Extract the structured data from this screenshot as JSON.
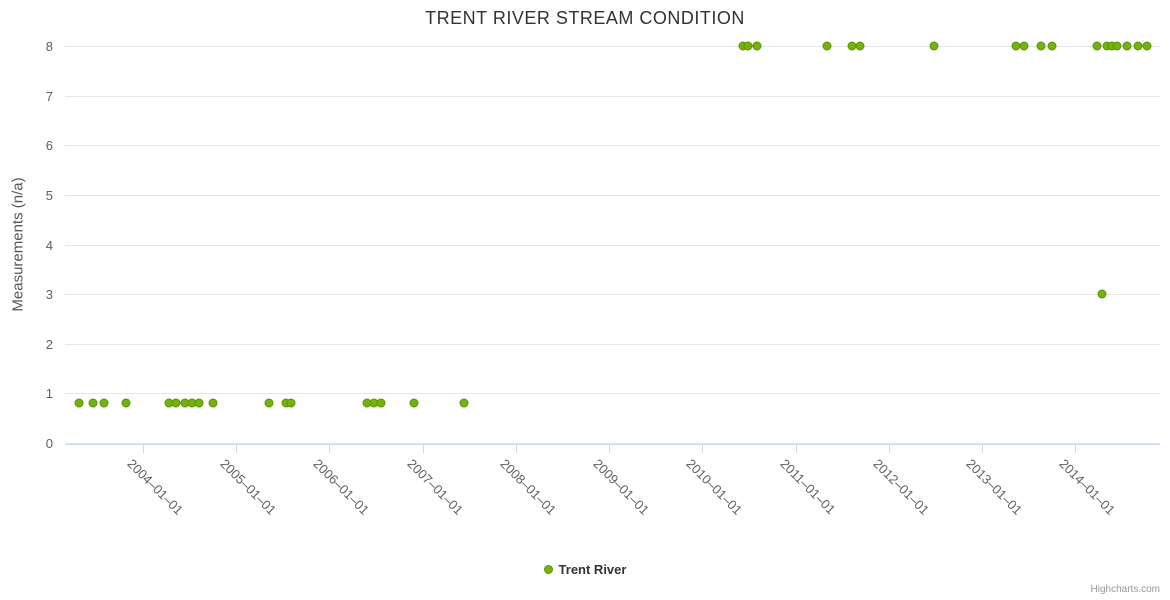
{
  "chart": {
    "title": "TRENT RIVER STREAM CONDITION",
    "y_axis_title": "Measurements (n/a)",
    "credit": "Highcharts.com",
    "colors": {
      "series": "#76b20e",
      "series_edge": "#5a9305",
      "grid": "#e6e6e6",
      "axis": "#ccd6eb",
      "tick_label": "#606060",
      "title": "#333333"
    }
  },
  "chart_data": {
    "type": "scatter",
    "title": "TRENT RIVER STREAM CONDITION",
    "xlabel": "",
    "ylabel": "Measurements (n/a)",
    "ylim": [
      0,
      8
    ],
    "y_ticks": [
      0,
      1,
      2,
      3,
      4,
      5,
      6,
      7,
      8
    ],
    "x_ticks": [
      "2004-01-01",
      "2005-01-01",
      "2006-01-01",
      "2007-01-01",
      "2008-01-01",
      "2009-01-01",
      "2010-01-01",
      "2011-01-01",
      "2012-01-01",
      "2013-01-01",
      "2014-01-01"
    ],
    "grid": "horizontal-only",
    "legend_position": "bottom-center",
    "series": [
      {
        "name": "Trent River",
        "color": "#76b20e",
        "points": [
          {
            "date": "2003-04-25",
            "value": 0.8
          },
          {
            "date": "2003-06-20",
            "value": 0.8
          },
          {
            "date": "2003-08-01",
            "value": 0.8
          },
          {
            "date": "2003-10-25",
            "value": 0.8
          },
          {
            "date": "2004-04-12",
            "value": 0.8
          },
          {
            "date": "2004-05-08",
            "value": 0.8
          },
          {
            "date": "2004-06-12",
            "value": 0.8
          },
          {
            "date": "2004-07-10",
            "value": 0.8
          },
          {
            "date": "2004-08-08",
            "value": 0.8
          },
          {
            "date": "2004-10-03",
            "value": 0.8
          },
          {
            "date": "2005-05-08",
            "value": 0.8
          },
          {
            "date": "2005-07-12",
            "value": 0.8
          },
          {
            "date": "2005-08-03",
            "value": 0.8
          },
          {
            "date": "2006-05-25",
            "value": 0.8
          },
          {
            "date": "2006-06-22",
            "value": 0.8
          },
          {
            "date": "2006-07-20",
            "value": 0.8
          },
          {
            "date": "2006-11-28",
            "value": 0.8
          },
          {
            "date": "2007-06-10",
            "value": 0.8
          },
          {
            "date": "2010-06-10",
            "value": 8
          },
          {
            "date": "2010-06-28",
            "value": 8
          },
          {
            "date": "2010-08-03",
            "value": 8
          },
          {
            "date": "2011-05-03",
            "value": 8
          },
          {
            "date": "2011-08-08",
            "value": 8
          },
          {
            "date": "2011-09-10",
            "value": 8
          },
          {
            "date": "2012-06-28",
            "value": 8
          },
          {
            "date": "2013-05-12",
            "value": 8
          },
          {
            "date": "2013-06-15",
            "value": 8
          },
          {
            "date": "2013-08-18",
            "value": 8
          },
          {
            "date": "2013-10-03",
            "value": 8
          },
          {
            "date": "2014-03-25",
            "value": 8
          },
          {
            "date": "2014-04-15",
            "value": 3
          },
          {
            "date": "2014-05-05",
            "value": 8
          },
          {
            "date": "2014-05-25",
            "value": 8
          },
          {
            "date": "2014-06-12",
            "value": 8
          },
          {
            "date": "2014-07-22",
            "value": 8
          },
          {
            "date": "2014-09-05",
            "value": 8
          },
          {
            "date": "2014-10-10",
            "value": 8
          }
        ]
      }
    ]
  }
}
